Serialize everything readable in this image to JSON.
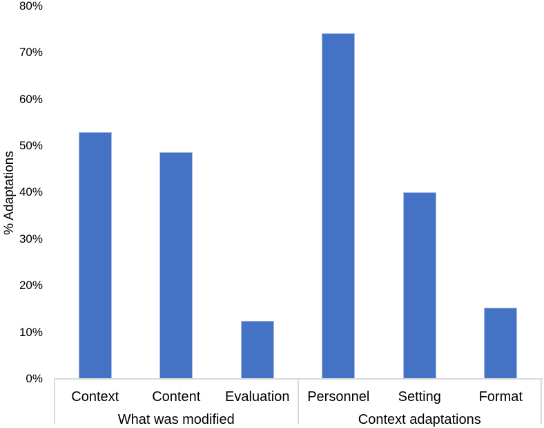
{
  "chart_data": {
    "type": "bar",
    "title": "",
    "xlabel": "",
    "ylabel": "% Adaptations",
    "ylim": [
      0,
      80
    ],
    "ytick_step": 10,
    "ytick_labels": [
      "0%",
      "10%",
      "20%",
      "30%",
      "40%",
      "50%",
      "60%",
      "70%",
      "80%"
    ],
    "grid": false,
    "legend": false,
    "categories": [
      "Context",
      "Content",
      "Evaluation",
      "Personnel",
      "Setting",
      "Format"
    ],
    "values": [
      53,
      48.6,
      12.4,
      74.2,
      40.1,
      15.3
    ],
    "groups": [
      {
        "label": "What was modified",
        "categories": [
          "Context",
          "Content",
          "Evaluation"
        ],
        "values": [
          53,
          48.6,
          12.4
        ]
      },
      {
        "label": "Context adaptations",
        "categories": [
          "Personnel",
          "Setting",
          "Format"
        ],
        "values": [
          74.2,
          40.1,
          15.3
        ]
      }
    ],
    "colors": {
      "bar_fill": "#4472C4",
      "bar_border": "#A9BDE4",
      "axis_line": "#D9D9D9",
      "text": "#000000"
    }
  }
}
